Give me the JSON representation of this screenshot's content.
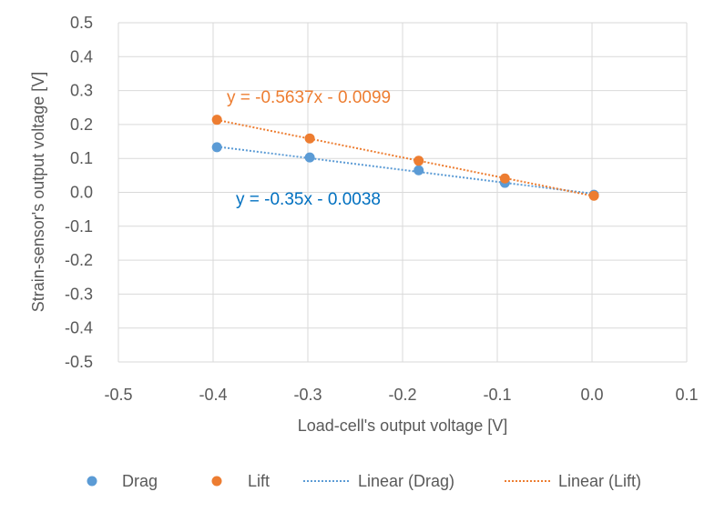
{
  "chart_data": {
    "type": "scatter",
    "xlabel": "Load-cell's output voltage [V]",
    "ylabel": "Strain-sensor's output voltage [V]",
    "xlim": [
      -0.5,
      0.1
    ],
    "ylim": [
      -0.5,
      0.5
    ],
    "xticks": [
      -0.5,
      -0.4,
      -0.3,
      -0.2,
      -0.1,
      0.0,
      0.1
    ],
    "yticks": [
      0.5,
      0.4,
      0.3,
      0.2,
      0.1,
      0.0,
      -0.1,
      -0.2,
      -0.3,
      -0.4,
      -0.5
    ],
    "xtick_labels": [
      "-0.5",
      "-0.4",
      "-0.3",
      "-0.2",
      "-0.1",
      "0.0",
      "0.1"
    ],
    "ytick_labels": [
      "0.5",
      "0.4",
      "0.3",
      "0.2",
      "0.1",
      "0.0",
      "-0.1",
      "-0.2",
      "-0.3",
      "-0.4",
      "-0.5"
    ],
    "grid": true,
    "legend_position": "bottom",
    "series": [
      {
        "name": "Drag",
        "color": "#5B9BD5",
        "x": [
          -0.396,
          -0.298,
          -0.183,
          -0.092,
          0.002
        ],
        "y": [
          0.133,
          0.103,
          0.065,
          0.028,
          -0.007
        ]
      },
      {
        "name": "Lift",
        "color": "#ED7D31",
        "x": [
          -0.396,
          -0.298,
          -0.183,
          -0.092,
          0.002
        ],
        "y": [
          0.214,
          0.159,
          0.093,
          0.041,
          -0.01
        ]
      }
    ],
    "trendlines": [
      {
        "name": "Linear (Drag)",
        "color": "#5B9BD5",
        "slope": -0.35,
        "intercept": -0.0038,
        "x_range": [
          -0.396,
          0.002
        ],
        "equation": "y = -0.35x - 0.0038",
        "equation_color": "#0070C0"
      },
      {
        "name": "Linear (Lift)",
        "color": "#ED7D31",
        "slope": -0.5637,
        "intercept": -0.0099,
        "x_range": [
          -0.396,
          0.002
        ],
        "equation": "y = -0.5637x - 0.0099",
        "equation_color": "#ED7D31"
      }
    ]
  }
}
